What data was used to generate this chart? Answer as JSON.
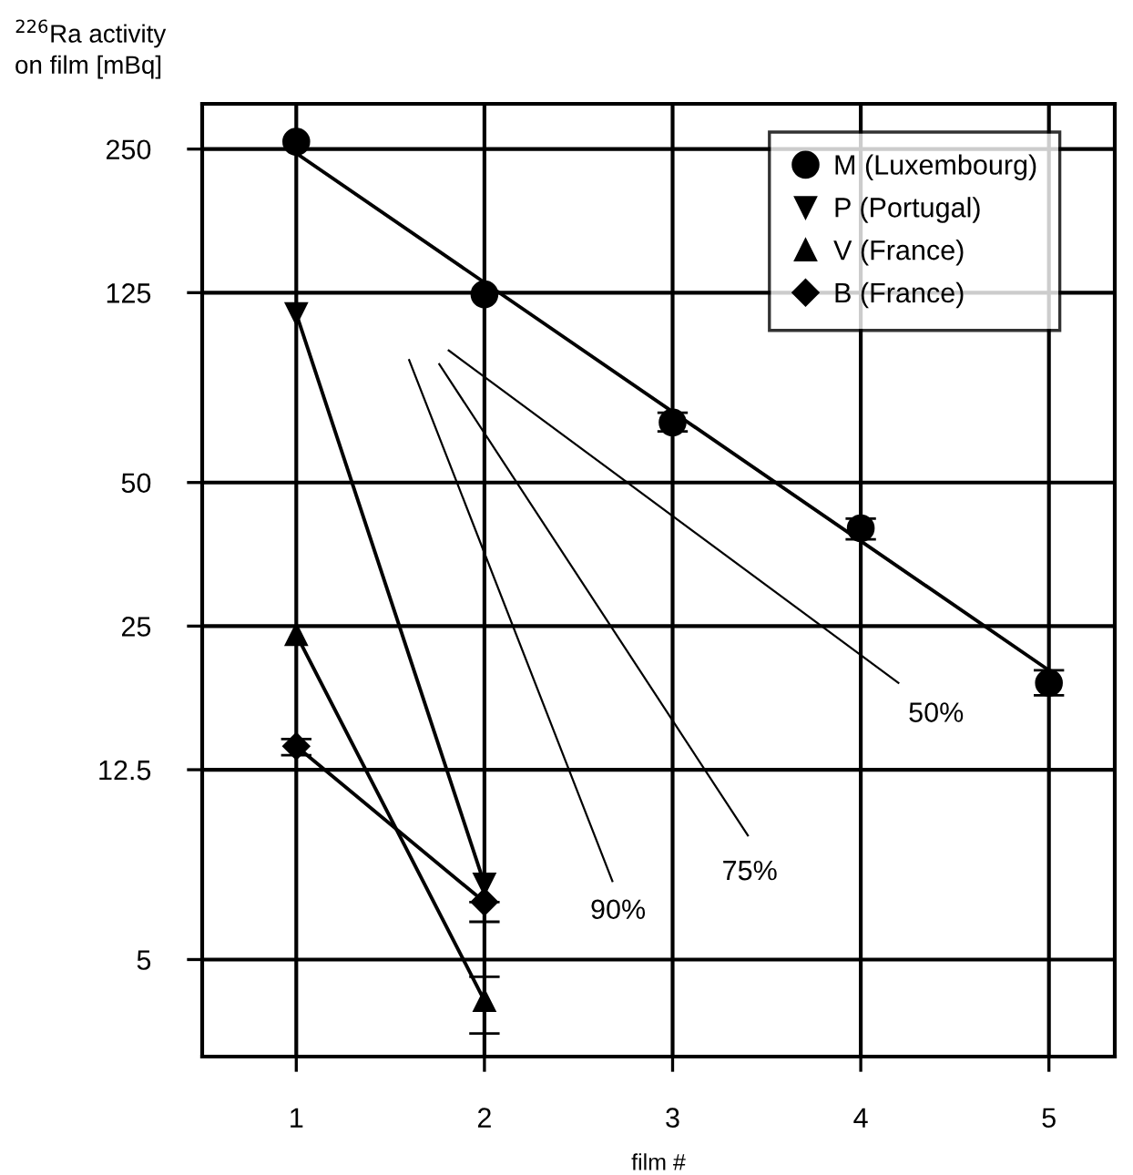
{
  "chart_data": {
    "type": "line",
    "xlabel": "film #",
    "ylabel": "$^{226}$Ra activity\non film [mBq]",
    "log": "y",
    "grid": true,
    "legend": "top right",
    "xlim": [
      0.5,
      5.35
    ],
    "xticks": [
      1,
      2,
      3,
      4,
      5
    ],
    "ylim": [
      3.13,
      311
    ],
    "yticks": [
      5,
      12.5,
      25,
      50,
      125,
      250
    ],
    "series": [
      {
        "name": "M (Luxembourg)",
        "type": "scatter",
        "marker": "circle",
        "color": "#000000",
        "x": [
          1,
          2,
          3,
          4,
          5
        ],
        "values": [
          259,
          124,
          66.8,
          40.1,
          19.0
        ],
        "errors": [
          null,
          null,
          [
            64,
            70
          ],
          [
            38,
            42
          ],
          [
            17.9,
            20.2
          ]
        ]
      },
      {
        "marker": "none",
        "color": "#000000",
        "x": [
          1,
          5
        ],
        "values": [
          245,
          20.2
        ]
      },
      {
        "name": "P (Portugal)",
        "marker": "triangle_down",
        "color": "#000000",
        "x": [
          1,
          2
        ],
        "values": [
          113,
          7.2
        ]
      },
      {
        "name": "V (France)",
        "marker": "triangle",
        "color": "#000000",
        "x": [
          1,
          2
        ],
        "values": [
          24,
          4.1
        ],
        "errors": [
          null,
          [
            3.5,
            4.6
          ]
        ]
      },
      {
        "name": "B (France)",
        "marker": "diamond",
        "color": "#000000",
        "x": [
          1,
          2
        ],
        "values": [
          14.0,
          6.6
        ],
        "errors": [
          [
            13.4,
            14.5
          ],
          [
            6.0,
            6.6
          ]
        ]
      },
      {
        "marker": "none",
        "color": "#000000",
        "x": [
          1.81,
          4.2
        ],
        "values": [
          94.6,
          19.0
        ]
      },
      {
        "marker": "none",
        "color": "#000000",
        "x": [
          1.76,
          3.4
        ],
        "values": [
          88.5,
          9.1
        ]
      },
      {
        "marker": "none",
        "color": "#000000",
        "x": [
          1.6,
          2.68
        ],
        "values": [
          90.3,
          7.3
        ]
      }
    ],
    "annotations": [
      {
        "text": "50%",
        "x": 4.4,
        "y": 16.3
      },
      {
        "text": "75%",
        "x": 3.41,
        "y": 7.6
      },
      {
        "text": "90%",
        "x": 2.71,
        "y": 6.3
      }
    ]
  }
}
